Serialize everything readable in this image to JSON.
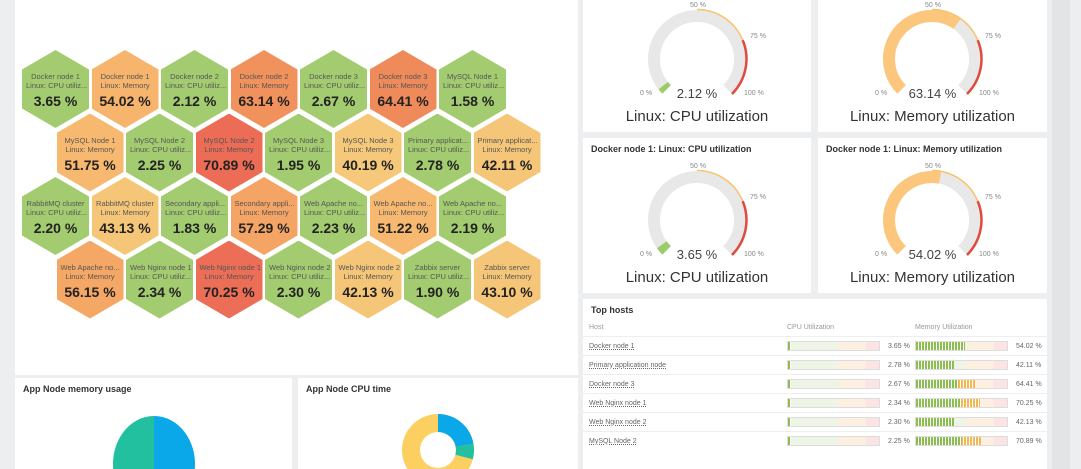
{
  "honeycomb": [
    [
      {
        "host": "Docker node 1",
        "item": "Linux: CPU utiliz...",
        "value": "3.65 %",
        "color": "#a3cc70"
      },
      {
        "host": "Docker node 1",
        "item": "Linux: Memory",
        "value": "54.02 %",
        "color": "#f7b46c"
      },
      {
        "host": "Docker node 2",
        "item": "Linux: CPU utiliz...",
        "value": "2.12 %",
        "color": "#a3cc70"
      },
      {
        "host": "Docker node 2",
        "item": "Linux: Memory",
        "value": "63.14 %",
        "color": "#f1915c"
      },
      {
        "host": "Docker node 3",
        "item": "Linux: CPU utiliz...",
        "value": "2.67 %",
        "color": "#a3cc70"
      },
      {
        "host": "Docker node 3",
        "item": "Linux: Memory",
        "value": "64.41 %",
        "color": "#ef8a5a"
      },
      {
        "host": "MySQL Node 1",
        "item": "Linux: CPU utiliz...",
        "value": "1.58 %",
        "color": "#a3cc70"
      }
    ],
    [
      {
        "host": "MySQL Node 1",
        "item": "Linux: Memory",
        "value": "51.75 %",
        "color": "#f7b96f"
      },
      {
        "host": "MySQL Node 2",
        "item": "Linux: CPU utiliz...",
        "value": "2.25 %",
        "color": "#a3cc70"
      },
      {
        "host": "MySQL Node 2",
        "item": "Linux: Memory",
        "value": "70.89 %",
        "color": "#ec6c55"
      },
      {
        "host": "MySQL Node 3",
        "item": "Linux: CPU utiliz...",
        "value": "1.95 %",
        "color": "#a3cc70"
      },
      {
        "host": "MySQL Node 3",
        "item": "Linux: Memory",
        "value": "40.19 %",
        "color": "#f6c97a"
      },
      {
        "host": "Primary applicat...",
        "item": "Linux: CPU utiliz...",
        "value": "2.78 %",
        "color": "#a3cc70"
      },
      {
        "host": "Primary applicat...",
        "item": "Linux: Memory",
        "value": "42.11 %",
        "color": "#f6c678"
      }
    ],
    [
      {
        "host": "RabbitMQ cluster",
        "item": "Linux: CPU utiliz...",
        "value": "2.20 %",
        "color": "#a3cc70"
      },
      {
        "host": "RabbitMQ cluster",
        "item": "Linux: Memory",
        "value": "43.13 %",
        "color": "#f6c678"
      },
      {
        "host": "Secondary appli...",
        "item": "Linux: CPU utiliz...",
        "value": "1.83 %",
        "color": "#a3cc70"
      },
      {
        "host": "Secondary appli...",
        "item": "Linux: Memory",
        "value": "57.29 %",
        "color": "#f4a464"
      },
      {
        "host": "Web Apache no...",
        "item": "Linux: CPU utiliz...",
        "value": "2.23 %",
        "color": "#a3cc70"
      },
      {
        "host": "Web Apache no...",
        "item": "Linux: Memory",
        "value": "51.22 %",
        "color": "#f7b96f"
      },
      {
        "host": "Web Apache no...",
        "item": "Linux: CPU utiliz...",
        "value": "2.19 %",
        "color": "#a3cc70"
      }
    ],
    [
      {
        "host": "Web Apache no...",
        "item": "Linux: Memory",
        "value": "56.15 %",
        "color": "#f5a866"
      },
      {
        "host": "Web Nginx node 1",
        "item": "Linux: CPU utiliz...",
        "value": "2.34 %",
        "color": "#a3cc70"
      },
      {
        "host": "Web Nginx node 1",
        "item": "Linux: Memory",
        "value": "70.25 %",
        "color": "#ec6e56"
      },
      {
        "host": "Web Nginx node 2",
        "item": "Linux: CPU utiliz...",
        "value": "2.30 %",
        "color": "#a3cc70"
      },
      {
        "host": "Web Nginx node 2",
        "item": "Linux: Memory",
        "value": "42.13 %",
        "color": "#f6c678"
      },
      {
        "host": "Zabbix server",
        "item": "Linux: CPU utiliz...",
        "value": "1.90 %",
        "color": "#a3cc70"
      },
      {
        "host": "Zabbix server",
        "item": "Linux: Memory",
        "value": "43.10 %",
        "color": "#f6c678"
      }
    ]
  ],
  "gauges": [
    {
      "title": "",
      "label": "Linux: CPU utilization",
      "value": "2.12 %",
      "percent": 2.12,
      "color": "#9ccb6b"
    },
    {
      "title": "",
      "label": "Linux: Memory utilization",
      "value": "63.14 %",
      "percent": 63.14,
      "color": "#fcc77d"
    },
    {
      "title": "Docker node 1: Linux: CPU utilization",
      "label": "Linux: CPU utilization",
      "value": "3.65 %",
      "percent": 3.65,
      "color": "#9ccb6b"
    },
    {
      "title": "Docker node 1: Linux: Memory utilization",
      "label": "Linux: Memory utilization",
      "value": "54.02 %",
      "percent": 54.02,
      "color": "#fcc77d"
    }
  ],
  "gauge_labels": {
    "min": "0 %",
    "mid": "50 %",
    "high": "75 %",
    "max": "100 %"
  },
  "top_hosts": {
    "title": "Top hosts",
    "headers": [
      "Host",
      "CPU Utilization",
      "Memory Utilization"
    ],
    "rows": [
      {
        "host": "Docker node 1",
        "cpu": "3.65 %",
        "cpu_pct": 3.65,
        "mem": "54.02 %",
        "mem_pct": 54.02
      },
      {
        "host": "Primary application node",
        "cpu": "2.78 %",
        "cpu_pct": 2.78,
        "mem": "42.11 %",
        "mem_pct": 42.11
      },
      {
        "host": "Docker node 3",
        "cpu": "2.67 %",
        "cpu_pct": 2.67,
        "mem": "64.41 %",
        "mem_pct": 64.41
      },
      {
        "host": "Web Nginx node 1",
        "cpu": "2.34 %",
        "cpu_pct": 2.34,
        "mem": "70.25 %",
        "mem_pct": 70.25
      },
      {
        "host": "Web Nginx node 2",
        "cpu": "2.30 %",
        "cpu_pct": 2.3,
        "mem": "42.13 %",
        "mem_pct": 42.13
      },
      {
        "host": "MySQL Node 2",
        "cpu": "2.25 %",
        "cpu_pct": 2.25,
        "mem": "70.89 %",
        "mem_pct": 70.89
      }
    ]
  },
  "pies": [
    {
      "title": "App Node memory usage"
    },
    {
      "title": "App Node CPU time"
    }
  ]
}
